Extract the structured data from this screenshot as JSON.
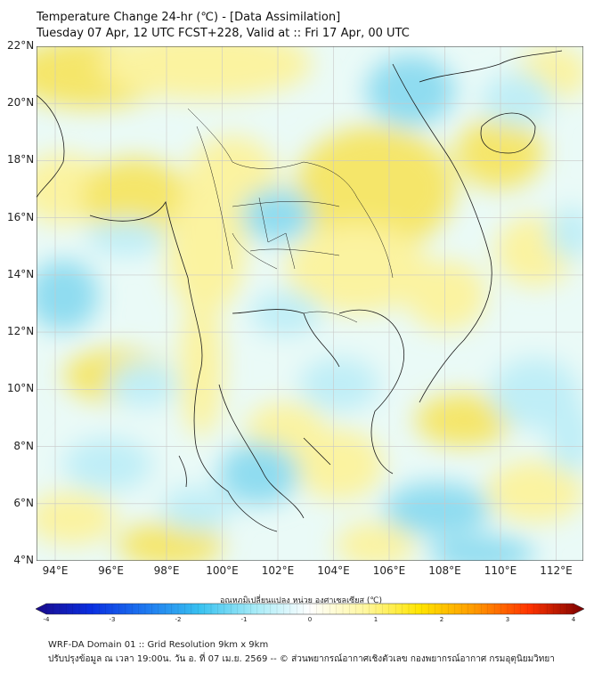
{
  "title_line1": "Temperature Change 24-hr (℃) - [Data Assimilation]",
  "title_line2": "Tuesday 07 Apr, 12 UTC FCST+228, Valid at :: Fri 17 Apr, 00 UTC",
  "lat_ticks": [
    "22°N",
    "20°N",
    "18°N",
    "16°N",
    "14°N",
    "12°N",
    "10°N",
    "8°N",
    "6°N",
    "4°N"
  ],
  "lon_ticks": [
    "94°E",
    "96°E",
    "98°E",
    "100°E",
    "102°E",
    "104°E",
    "106°E",
    "108°E",
    "110°E",
    "112°E"
  ],
  "colorbar": {
    "title": "อุณหภูมิเปลี่ยนแปลง หน่วย องศาเซลเซียส (℃)",
    "ticks": [
      "-4",
      "-3",
      "-2",
      "-1",
      "0",
      "1",
      "2",
      "3",
      "4"
    ],
    "min": -4,
    "max": 4,
    "colors": [
      "#1a0a8a",
      "#0a2ee0",
      "#1e78f0",
      "#39c2f0",
      "#a6ebf7",
      "#ffffff",
      "#fff7a0",
      "#ffe500",
      "#ff9900",
      "#ff3300",
      "#7a0000"
    ]
  },
  "footer_line1": "WRF-DA Domain 01 :: Grid Resolution 9km x 9km",
  "footer_line2": "ปรับปรุงข้อมูล ณ เวลา 19:00น. วัน อ. ที่ 07 เม.ย. 2569 -- © ส่วนพยากรณ์อากาศเชิงตัวเลข กองพยากรณ์อากาศ กรมอุตุนิยมวิทยา",
  "colors": {
    "warm": "#fbf3a0",
    "warm_strong": "#f5e66a",
    "cool": "#bfeef7",
    "cool_strong": "#8fdcf0",
    "coast": "#1a1a1a",
    "grid": "#c8c8c8"
  }
}
